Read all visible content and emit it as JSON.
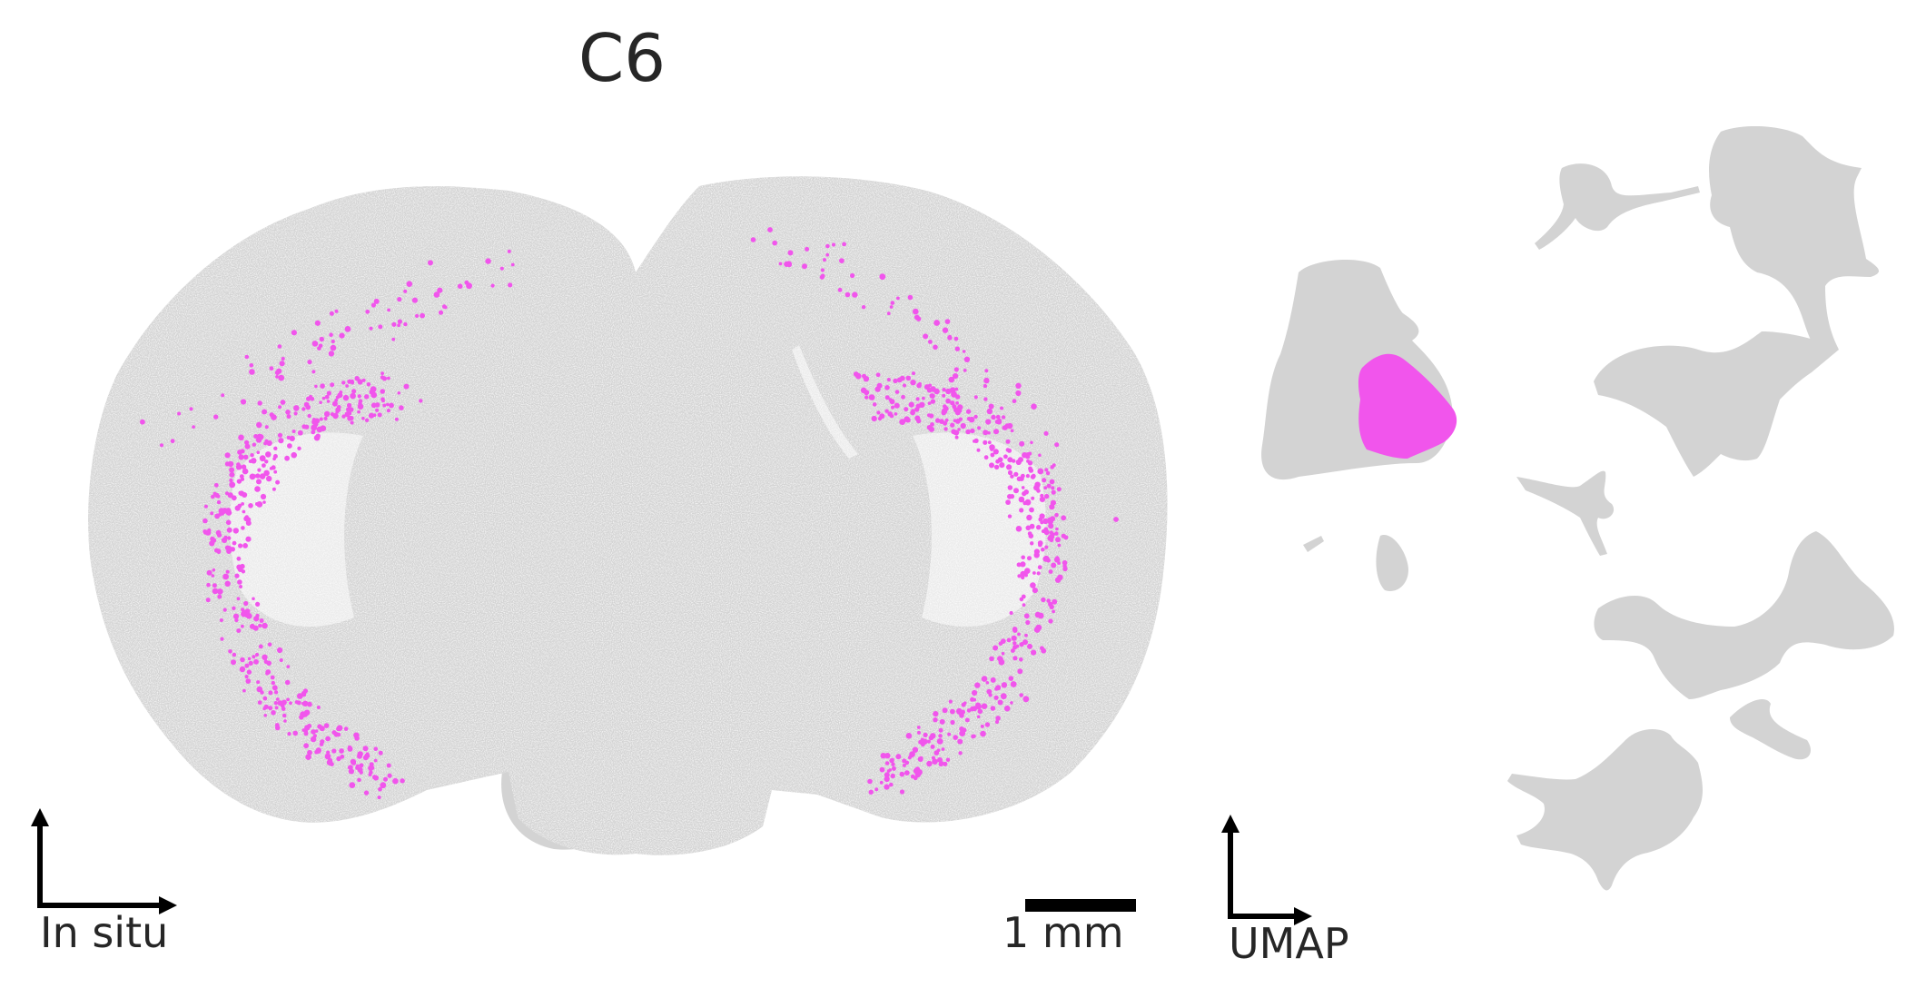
{
  "title": "C6",
  "insitu_panel": {
    "axis_label": "In situ",
    "scale_bar_label": "1 mm"
  },
  "umap_panel": {
    "axis_label": "UMAP"
  },
  "colors": {
    "background_cells": "#d3d3d3",
    "highlight_cluster": "#f155ec",
    "axis_arrows": "#000000",
    "text": "#262626"
  },
  "highlighted_cluster": "C6"
}
